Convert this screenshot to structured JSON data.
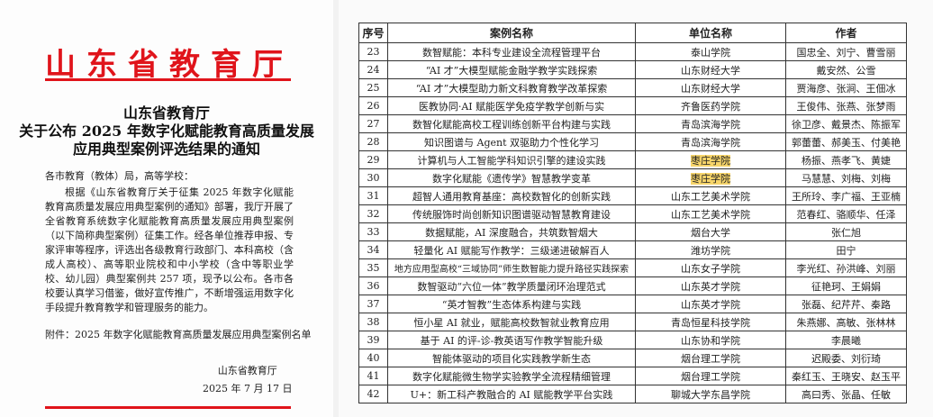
{
  "notice": {
    "letterhead": "山东省教育厅",
    "title_lines": [
      "山东省教育厅",
      "关于公布 2025 年数字化赋能教育高质量发展",
      "应用典型案例评选结果的通知"
    ],
    "greeting": "各市教育（教体）局，高等学校：",
    "body": "根据《山东省教育厅关于征集 2025 年数字化赋能教育高质量发展应用典型案例的通知》部署，我厅开展了全省教育系统数字化赋能教育高质量发展应用典型案例（以下简称典型案例）征集工作。经各单位推荐申报、专家评审等程序，评选出各级教育行政部门、本科高校（含成人高校）、高等职业院校和中小学校（含中等职业学校、幼儿园）典型案例共 257 项，现予以公布。各市各校要认真学习借鉴，做好宣传推广，不断增强运用数字化手段提升教育教学和管理服务的能力。",
    "attachment": "附件：2025 年数字化赋能教育高质量发展应用典型案例名单",
    "signer": "山东省教育厅",
    "date": "2025 年 7 月 17 日"
  },
  "table": {
    "headers": [
      "序号",
      "案例名称",
      "单位名称",
      "作者"
    ],
    "rows": [
      [
        "23",
        "数智赋能：本科专业建设全流程管理平台",
        "泰山学院",
        "国忠全、刘宁、曹雪丽"
      ],
      [
        "24",
        "“AI 才”大模型赋能金融学教学实践探索",
        "山东财经大学",
        "戴安然、公雪"
      ],
      [
        "25",
        "“AI 才”大模型助力新文科教育教学改革探索",
        "山东财经大学",
        "贾海彦、张涧、王佃冰"
      ],
      [
        "26",
        "医教协同·AI 赋能医学免疫学教学创新与实",
        "齐鲁医药学院",
        "王俊伟、张燕、张梦雨"
      ],
      [
        "27",
        "数智化赋能高校工程训练创新平台构建与实践",
        "青岛滨海学院",
        "徐卫彦、戴景杰、陈振军"
      ],
      [
        "28",
        "知识图谱与 Agent 双驱助力个性化学习",
        "青岛滨海学院",
        "郭蕾蕾、郝美玉、付美艳"
      ],
      [
        "29",
        "计算机与人工智能学科知识引擎的建设实践",
        "枣庄学院",
        "杨振、燕孝飞、黄婕"
      ],
      [
        "30",
        "数字化赋能《遗传学》智慧教学变革",
        "枣庄学院",
        "马慧慧、刘梅、刘梅"
      ],
      [
        "31",
        "超智人通用教育基座：高校数智化的创新实践",
        "山东工艺美术学院",
        "王所玲、李广福、王亚楠"
      ],
      [
        "32",
        "传统服饰时尚创新知识图谱驱动智慧教育建设",
        "山东工艺美术学院",
        "范春红、骆顺华、任泽"
      ],
      [
        "33",
        "数据赋能，AI 深度融合，共筑数智烟大",
        "烟台大学",
        "张仁旭"
      ],
      [
        "34",
        "轻量化 AI 赋能写作教学：三级递进破解百人",
        "潍坊学院",
        "田宁"
      ],
      [
        "35",
        "地方应用型高校“三域协同”师生数智能力提升路径实践探索",
        "山东女子学院",
        "李光红、孙洪峰、刘丽"
      ],
      [
        "36",
        "数智驱动“六位一体”教学质量闭环治理范式",
        "山东英才学院",
        "征艳珂、王娟娟"
      ],
      [
        "37",
        "“英才智教”生态体系构建与实践",
        "山东英才学院",
        "张磊、纪芹芹、秦路"
      ],
      [
        "38",
        "恒小星 AI 就业，赋能高校数智就业教育应用",
        "青岛恒星科技学院",
        "朱燕娜、高敏、张林林"
      ],
      [
        "39",
        "基于 AI 的评-诊-教英语写作教学智能升级",
        "山东协和学院",
        "李晨曦"
      ],
      [
        "40",
        "智能体驱动的项目化实践教学新生态",
        "烟台理工学院",
        "迟殿委、刘衍琦"
      ],
      [
        "41",
        "数字化赋能微生物学实验教学全流程精细管理",
        "烟台理工学院",
        "秦红玉、王晓安、赵玉平"
      ],
      [
        "42",
        "U+：新工科产教融合的 AI 赋能教学平台实践",
        "聊城大学东昌学院",
        "高曰秀、张晶、任敏"
      ]
    ],
    "highlighted_unit": "枣庄学院",
    "highlight_color": "#f7d56a"
  }
}
